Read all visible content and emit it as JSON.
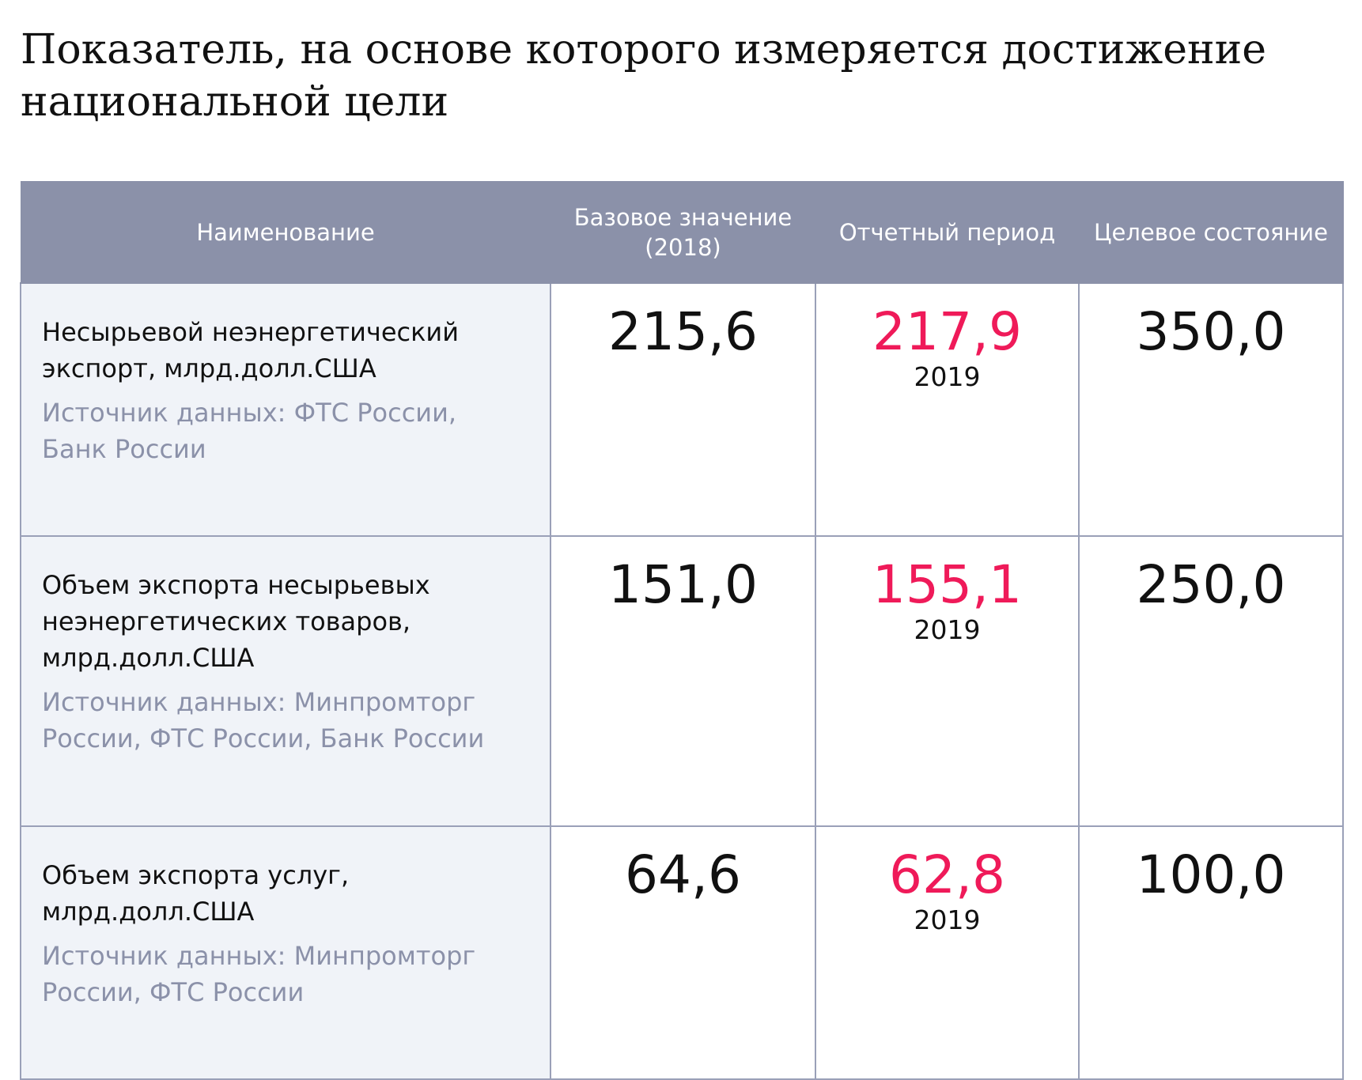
{
  "title": "Показатель, на основе которого измеряется достижение национальной цели",
  "table": {
    "headers": {
      "name": "Наименование",
      "base": "Базовое значение (2018)",
      "period": "Отчетный период",
      "target": "Целевое состояние"
    },
    "rows": [
      {
        "name": "Несырьевой неэнергетический экспорт, млрд.долл.США",
        "source": "Источник данных: ФТС России, Банк России",
        "base": "215,6",
        "period_value": "217,9",
        "period_year": "2019",
        "target": "350,0"
      },
      {
        "name": "Объем экспорта несырьевых неэнергетических товаров, млрд.долл.США",
        "source": "Источник данных: Минпромторг России, ФТС России, Банк России",
        "base": "151,0",
        "period_value": "155,1",
        "period_year": "2019",
        "target": "250,0"
      },
      {
        "name": "Объем экспорта услуг, млрд.долл.США",
        "source": "Источник данных: Минпромторг России, ФТС России",
        "base": "64,6",
        "period_value": "62,8",
        "period_year": "2019",
        "target": "100,0"
      }
    ]
  },
  "colors": {
    "header_bg": "#8b91a9",
    "name_cell_bg": "#f0f3f8",
    "period_value": "#ef1a59",
    "source_text": "#8b91a9"
  }
}
